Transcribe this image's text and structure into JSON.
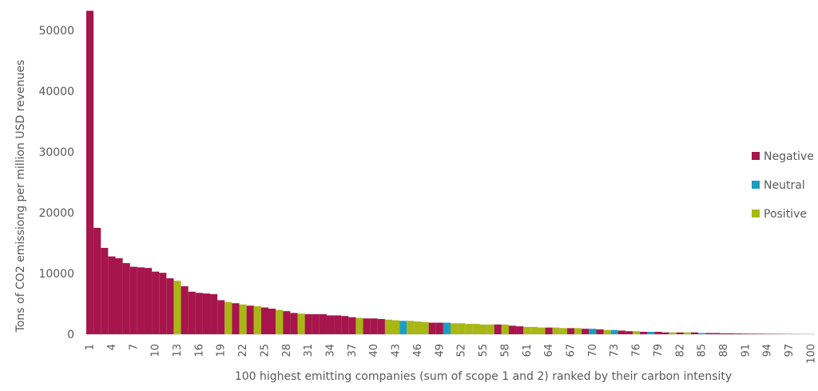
{
  "chart_data": {
    "type": "bar",
    "title": "",
    "xlabel": "100 highest emitting companies (sum of scope 1 and 2) ranked by their carbon intensity",
    "ylabel": "Tons of CO2 emissiong per million USD revenues",
    "ylim": [
      0,
      53000
    ],
    "yticks": [
      0,
      10000,
      20000,
      30000,
      40000,
      50000
    ],
    "xtick_labels": [
      "1",
      "4",
      "7",
      "10",
      "13",
      "16",
      "19",
      "22",
      "25",
      "28",
      "31",
      "34",
      "37",
      "40",
      "43",
      "46",
      "49",
      "52",
      "55",
      "58",
      "61",
      "64",
      "67",
      "70",
      "73",
      "76",
      "79",
      "82",
      "85",
      "88",
      "91",
      "94",
      "97",
      "100"
    ],
    "colors": {
      "Negative": "#A6154B",
      "Neutral": "#1B9EC2",
      "Positive": "#A9B715"
    },
    "legend": [
      "Negative",
      "Neutral",
      "Positive"
    ],
    "legend_position": "right",
    "categories": [
      1,
      2,
      3,
      4,
      5,
      6,
      7,
      8,
      9,
      10,
      11,
      12,
      13,
      14,
      15,
      16,
      17,
      18,
      19,
      20,
      21,
      22,
      23,
      24,
      25,
      26,
      27,
      28,
      29,
      30,
      31,
      32,
      33,
      34,
      35,
      36,
      37,
      38,
      39,
      40,
      41,
      42,
      43,
      44,
      45,
      46,
      47,
      48,
      49,
      50,
      51,
      52,
      53,
      54,
      55,
      56,
      57,
      58,
      59,
      60,
      61,
      62,
      63,
      64,
      65,
      66,
      67,
      68,
      69,
      70,
      71,
      72,
      73,
      74,
      75,
      76,
      77,
      78,
      79,
      80,
      81,
      82,
      83,
      84,
      85,
      86,
      87,
      88,
      89,
      90,
      91,
      92,
      93,
      94,
      95,
      96,
      97,
      98,
      99,
      100
    ],
    "values": [
      53200,
      17500,
      14200,
      12800,
      12500,
      11700,
      11100,
      11000,
      10900,
      10300,
      10100,
      9200,
      8800,
      7900,
      7000,
      6800,
      6700,
      6600,
      5600,
      5300,
      5100,
      4900,
      4700,
      4600,
      4400,
      4200,
      4000,
      3800,
      3500,
      3400,
      3300,
      3300,
      3300,
      3100,
      3100,
      3000,
      2800,
      2700,
      2600,
      2600,
      2500,
      2400,
      2300,
      2200,
      2200,
      2100,
      2000,
      1900,
      1900,
      1900,
      1800,
      1800,
      1700,
      1700,
      1600,
      1600,
      1600,
      1600,
      1400,
      1300,
      1200,
      1200,
      1100,
      1100,
      1100,
      1000,
      1000,
      1000,
      900,
      900,
      800,
      700,
      700,
      600,
      500,
      500,
      400,
      400,
      400,
      300,
      300,
      300,
      300,
      300,
      200,
      200,
      200,
      150,
      150,
      120,
      100,
      90,
      80,
      70,
      60,
      50,
      40,
      30,
      20,
      10
    ],
    "series_labels": [
      "Negative",
      "Negative",
      "Negative",
      "Negative",
      "Negative",
      "Negative",
      "Negative",
      "Negative",
      "Negative",
      "Negative",
      "Negative",
      "Negative",
      "Positive",
      "Negative",
      "Negative",
      "Negative",
      "Negative",
      "Negative",
      "Negative",
      "Positive",
      "Negative",
      "Positive",
      "Negative",
      "Positive",
      "Negative",
      "Negative",
      "Positive",
      "Negative",
      "Negative",
      "Positive",
      "Negative",
      "Negative",
      "Negative",
      "Negative",
      "Negative",
      "Negative",
      "Negative",
      "Positive",
      "Negative",
      "Negative",
      "Negative",
      "Positive",
      "Positive",
      "Neutral",
      "Positive",
      "Positive",
      "Positive",
      "Negative",
      "Negative",
      "Neutral",
      "Positive",
      "Positive",
      "Positive",
      "Positive",
      "Positive",
      "Positive",
      "Negative",
      "Positive",
      "Negative",
      "Negative",
      "Positive",
      "Positive",
      "Positive",
      "Negative",
      "Positive",
      "Positive",
      "Negative",
      "Positive",
      "Negative",
      "Neutral",
      "Negative",
      "Positive",
      "Neutral",
      "Negative",
      "Negative",
      "Positive",
      "Negative",
      "Neutral",
      "Negative",
      "Negative",
      "Positive",
      "Negative",
      "Positive",
      "Negative",
      "Neutral",
      "Negative",
      "Negative",
      "Negative",
      "Negative",
      "Negative",
      "Negative",
      "Negative",
      "Negative",
      "Negative",
      "Negative",
      "Negative",
      "Negative",
      "Negative",
      "Negative",
      "Negative"
    ]
  }
}
